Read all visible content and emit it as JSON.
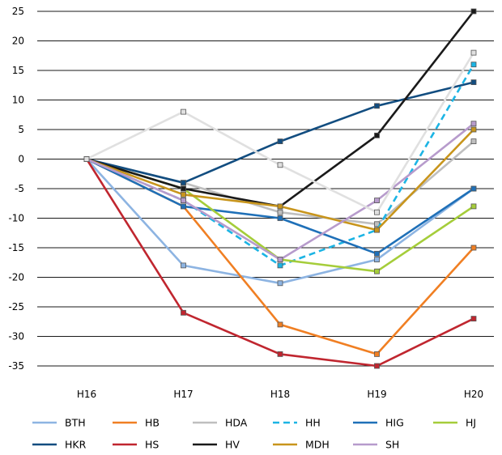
{
  "chart_data": {
    "type": "line",
    "categories": [
      "H16",
      "H17",
      "H18",
      "H19",
      "H20"
    ],
    "ylim": [
      -35,
      25
    ],
    "yticks": [
      25,
      20,
      15,
      10,
      5,
      0,
      -5,
      -10,
      -15,
      -20,
      -25,
      -30,
      -35
    ],
    "grid": "horizontal",
    "legend_position": "bottom",
    "series": [
      {
        "name": "BTH",
        "color": "#8DB4E2",
        "dashed": false,
        "values": [
          0,
          -18,
          -21,
          -17,
          -5
        ]
      },
      {
        "name": "HB",
        "color": "#F07F23",
        "dashed": false,
        "values": [
          0,
          -8,
          -28,
          -33,
          -15
        ]
      },
      {
        "name": "HDA",
        "color": "#BFBFBF",
        "dashed": false,
        "values": [
          0,
          -4,
          -9,
          -11,
          3
        ]
      },
      {
        "name": "HH",
        "color": "#1CB4E4",
        "dashed": true,
        "values": [
          0,
          -7,
          -18,
          -12,
          16
        ]
      },
      {
        "name": "HIG",
        "color": "#1F70B8",
        "dashed": false,
        "values": [
          0,
          -8,
          -10,
          -16,
          -5
        ]
      },
      {
        "name": "HJ",
        "color": "#A5CD3A",
        "dashed": false,
        "values": [
          0,
          -5,
          -17,
          -19,
          -8
        ]
      },
      {
        "name": "HKR",
        "color": "#124D80",
        "dashed": false,
        "values": [
          0,
          -4,
          3,
          9,
          13
        ]
      },
      {
        "name": "HS",
        "color": "#C0262F",
        "dashed": false,
        "values": [
          0,
          -26,
          -33,
          -35,
          -27
        ]
      },
      {
        "name": "HV",
        "color": "#1A1A1A",
        "dashed": false,
        "values": [
          0,
          -5,
          -8,
          4,
          25
        ]
      },
      {
        "name": "MDH",
        "color": "#C8951C",
        "dashed": false,
        "values": [
          0,
          -6,
          -8,
          -12,
          5
        ]
      },
      {
        "name": "SH",
        "color": "#B79BCC",
        "dashed": false,
        "values": [
          0,
          -7,
          -17,
          -7,
          6
        ]
      },
      {
        "name": "",
        "color": "#E0E0E0",
        "dashed": false,
        "values": [
          0,
          8,
          -1,
          -9,
          18
        ]
      }
    ]
  }
}
